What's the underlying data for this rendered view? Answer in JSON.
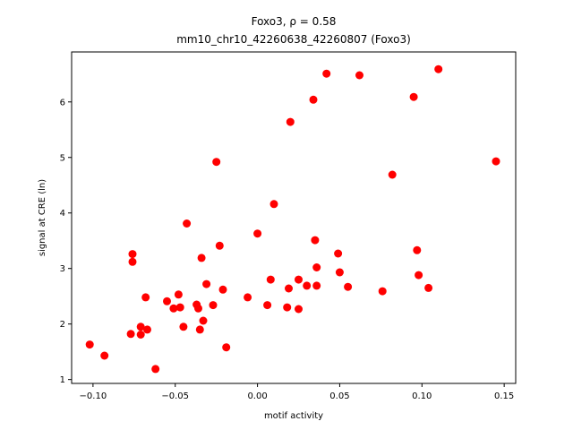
{
  "chart_data": {
    "type": "scatter",
    "title_line1": "Foxo3, ρ = 0.58",
    "title_line2": "mm10_chr10_42260638_42260807 (Foxo3)",
    "xlabel": "motif activity",
    "ylabel": "signal at CRE (ln)",
    "xlim": [
      -0.113,
      0.157
    ],
    "ylim": [
      0.93,
      6.9
    ],
    "xticks": [
      -0.1,
      -0.05,
      0.0,
      0.05,
      0.1,
      0.15
    ],
    "xtick_labels": [
      "−0.10",
      "−0.05",
      "0.00",
      "0.05",
      "0.10",
      "0.15"
    ],
    "yticks": [
      1,
      2,
      3,
      4,
      5,
      6
    ],
    "ytick_labels": [
      "1",
      "2",
      "3",
      "4",
      "5",
      "6"
    ],
    "grid": false,
    "marker_color": "#ff0000",
    "points": [
      {
        "x": -0.102,
        "y": 1.63
      },
      {
        "x": -0.093,
        "y": 1.43
      },
      {
        "x": -0.077,
        "y": 1.82
      },
      {
        "x": -0.076,
        "y": 3.26
      },
      {
        "x": -0.076,
        "y": 3.12
      },
      {
        "x": -0.071,
        "y": 1.95
      },
      {
        "x": -0.071,
        "y": 1.81
      },
      {
        "x": -0.068,
        "y": 2.48
      },
      {
        "x": -0.067,
        "y": 1.9
      },
      {
        "x": -0.062,
        "y": 1.19
      },
      {
        "x": -0.055,
        "y": 2.41
      },
      {
        "x": -0.051,
        "y": 2.28
      },
      {
        "x": -0.048,
        "y": 2.53
      },
      {
        "x": -0.047,
        "y": 2.3
      },
      {
        "x": -0.045,
        "y": 1.95
      },
      {
        "x": -0.043,
        "y": 3.81
      },
      {
        "x": -0.037,
        "y": 2.35
      },
      {
        "x": -0.036,
        "y": 2.28
      },
      {
        "x": -0.035,
        "y": 1.9
      },
      {
        "x": -0.034,
        "y": 3.19
      },
      {
        "x": -0.033,
        "y": 2.06
      },
      {
        "x": -0.031,
        "y": 2.72
      },
      {
        "x": -0.027,
        "y": 2.34
      },
      {
        "x": -0.025,
        "y": 4.92
      },
      {
        "x": -0.023,
        "y": 3.41
      },
      {
        "x": -0.021,
        "y": 2.62
      },
      {
        "x": -0.019,
        "y": 1.58
      },
      {
        "x": -0.006,
        "y": 2.48
      },
      {
        "x": 0.0,
        "y": 3.63
      },
      {
        "x": 0.006,
        "y": 2.34
      },
      {
        "x": 0.008,
        "y": 2.8
      },
      {
        "x": 0.01,
        "y": 4.16
      },
      {
        "x": 0.018,
        "y": 2.3
      },
      {
        "x": 0.019,
        "y": 2.64
      },
      {
        "x": 0.02,
        "y": 5.64
      },
      {
        "x": 0.025,
        "y": 2.8
      },
      {
        "x": 0.025,
        "y": 2.27
      },
      {
        "x": 0.03,
        "y": 2.69
      },
      {
        "x": 0.034,
        "y": 6.04
      },
      {
        "x": 0.035,
        "y": 3.51
      },
      {
        "x": 0.036,
        "y": 2.69
      },
      {
        "x": 0.036,
        "y": 3.02
      },
      {
        "x": 0.042,
        "y": 6.51
      },
      {
        "x": 0.049,
        "y": 3.27
      },
      {
        "x": 0.05,
        "y": 2.93
      },
      {
        "x": 0.055,
        "y": 2.67
      },
      {
        "x": 0.062,
        "y": 6.48
      },
      {
        "x": 0.076,
        "y": 2.59
      },
      {
        "x": 0.082,
        "y": 4.69
      },
      {
        "x": 0.095,
        "y": 6.09
      },
      {
        "x": 0.097,
        "y": 3.33
      },
      {
        "x": 0.098,
        "y": 2.88
      },
      {
        "x": 0.104,
        "y": 2.65
      },
      {
        "x": 0.11,
        "y": 6.59
      },
      {
        "x": 0.145,
        "y": 4.93
      }
    ]
  }
}
